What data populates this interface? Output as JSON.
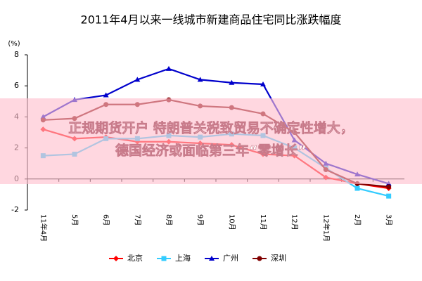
{
  "chart_data": {
    "type": "line",
    "title": "2011年4月以来一线城市新建商品住宅同比涨跌幅度",
    "y_label": "(%)",
    "categories": [
      "11年4月",
      "5月",
      "6月",
      "7月",
      "8月",
      "9月",
      "10月",
      "11月",
      "12月",
      "12年1月",
      "2月",
      "3月"
    ],
    "series": [
      {
        "name": "北京",
        "color": "#ff0000",
        "marker": "diamond",
        "values": [
          3.2,
          2.6,
          2.7,
          2.4,
          2.4,
          2.3,
          2.2,
          1.6,
          1.5,
          0.1,
          -0.3,
          -0.6
        ]
      },
      {
        "name": "上海",
        "color": "#33ccff",
        "marker": "square",
        "values": [
          1.5,
          1.6,
          2.6,
          2.6,
          2.8,
          2.7,
          2.9,
          2.8,
          2.0,
          0.7,
          -0.6,
          -1.1
        ]
      },
      {
        "name": "广州",
        "color": "#0000cc",
        "marker": "triangle",
        "values": [
          4.0,
          5.1,
          5.4,
          6.4,
          7.1,
          6.4,
          6.2,
          6.1,
          2.5,
          1.0,
          0.3,
          -0.3
        ]
      },
      {
        "name": "深圳",
        "color": "#800000",
        "marker": "circle",
        "values": [
          3.8,
          3.9,
          4.8,
          4.8,
          5.1,
          4.7,
          4.6,
          4.2,
          3.0,
          0.6,
          -0.3,
          -0.5
        ]
      }
    ],
    "ylim": [
      -2,
      8
    ],
    "yticks": [
      -2,
      0,
      2,
      4,
      6,
      8
    ],
    "grid": false,
    "legend": "bottom"
  },
  "banner": [
    "正规期货开户 特朗普关税致贸易不确定性增大，",
    "德国经济或面临第三年“零增长”"
  ]
}
